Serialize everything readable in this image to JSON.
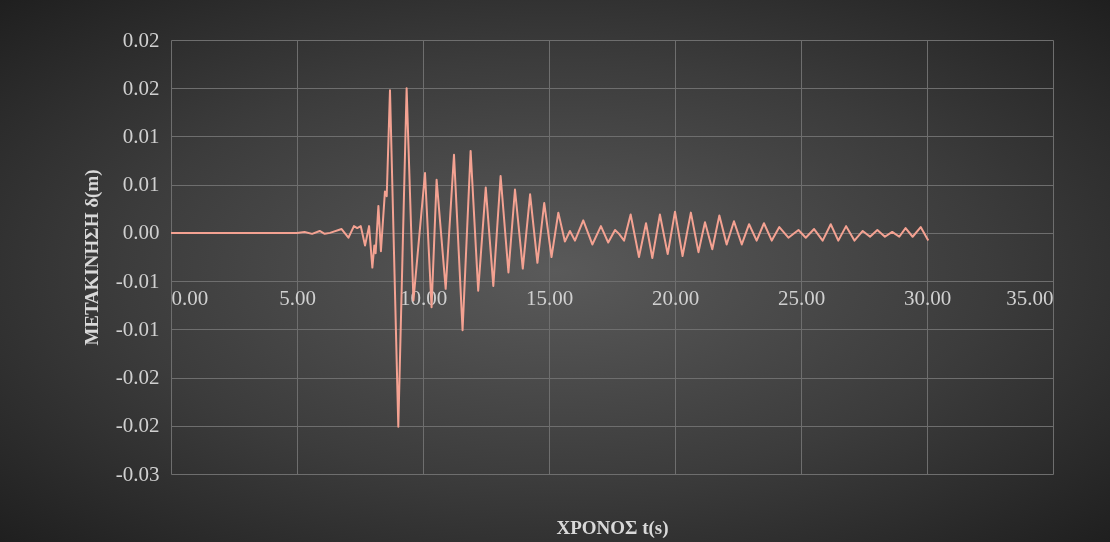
{
  "chart_data": {
    "type": "line",
    "xlabel": "ΧΡΟΝΟΣ t(s)",
    "ylabel": "ΜΕΤΑΚΙΝΗΣΗ δ(m)",
    "xlim": [
      0,
      35
    ],
    "xticks": [
      {
        "value": 0,
        "label": "0.00"
      },
      {
        "value": 5,
        "label": "5.00"
      },
      {
        "value": 10,
        "label": "10.00"
      },
      {
        "value": 15,
        "label": "15.00"
      },
      {
        "value": 20,
        "label": "20.00"
      },
      {
        "value": 25,
        "label": "25.00"
      },
      {
        "value": 30,
        "label": "30.00"
      },
      {
        "value": 35,
        "label": "35.00"
      }
    ],
    "ylim": [
      -0.025,
      0.02
    ],
    "yticks": [
      {
        "value": 0.02,
        "label": "0.02"
      },
      {
        "value": 0.015,
        "label": "0.02"
      },
      {
        "value": 0.01,
        "label": "0.01"
      },
      {
        "value": 0.005,
        "label": "0.01"
      },
      {
        "value": 0,
        "label": "0.00"
      },
      {
        "value": -0.005,
        "label": "-0.01"
      },
      {
        "value": -0.01,
        "label": "-0.01"
      },
      {
        "value": -0.015,
        "label": "-0.02"
      },
      {
        "value": -0.02,
        "label": "-0.02"
      },
      {
        "value": -0.025,
        "label": "-0.03"
      }
    ],
    "grid": true,
    "series": [
      {
        "color": "#f4a292",
        "x": [
          0,
          5,
          5.3,
          5.6,
          5.9,
          6.1,
          6.31,
          6.77,
          7.04,
          7.26,
          7.39,
          7.53,
          7.7,
          7.86,
          7.99,
          8.07,
          8.12,
          8.23,
          8.33,
          8.49,
          8.56,
          8.69,
          9.02,
          9.35,
          9.62,
          10.08,
          10.34,
          10.54,
          10.9,
          11.23,
          11.57,
          11.89,
          12.19,
          12.49,
          12.79,
          13.08,
          13.39,
          13.65,
          13.96,
          14.25,
          14.54,
          14.81,
          15.1,
          15.37,
          15.63,
          15.83,
          16.03,
          16.36,
          16.72,
          17.06,
          17.35,
          17.62,
          17.78,
          17.98,
          18.24,
          18.57,
          18.85,
          19.1,
          19.4,
          19.71,
          20,
          20.3,
          20.63,
          20.93,
          21.19,
          21.48,
          21.76,
          22.05,
          22.34,
          22.65,
          22.94,
          23.24,
          23.53,
          23.84,
          24.14,
          24.5,
          24.9,
          25.19,
          25.52,
          25.86,
          26.18,
          26.48,
          26.79,
          27.12,
          27.45,
          27.74,
          28.03,
          28.33,
          28.62,
          28.9,
          29.15,
          29.43,
          29.75,
          30.05
        ],
        "values": [
          0,
          0,
          0.0001,
          -0.0001,
          0.0002,
          -0.0001,
          0,
          0.0004,
          -0.0005,
          0.0007,
          0.0005,
          0.0007,
          -0.0013,
          0.0007,
          -0.0036,
          -0.0013,
          -0.0021,
          0.0028,
          -0.0019,
          0.0043,
          0.0038,
          0.0148,
          -0.0201,
          0.015,
          -0.007,
          0.0062,
          -0.0077,
          0.0055,
          -0.0058,
          0.0081,
          -0.0101,
          0.0085,
          -0.006,
          0.0047,
          -0.0055,
          0.0059,
          -0.0041,
          0.0045,
          -0.0037,
          0.004,
          -0.0031,
          0.0031,
          -0.0025,
          0.0021,
          -0.0009,
          0.0002,
          -0.0008,
          0.0013,
          -0.0012,
          0.0007,
          -0.001,
          0.0003,
          -0.0001,
          -0.0008,
          0.0019,
          -0.0025,
          0.001,
          -0.0026,
          0.0019,
          -0.0022,
          0.0022,
          -0.0024,
          0.0021,
          -0.002,
          0.0011,
          -0.0017,
          0.0018,
          -0.0012,
          0.0012,
          -0.0012,
          0.0009,
          -0.0008,
          0.001,
          -0.0008,
          0.0006,
          -0.0005,
          0.0003,
          -0.0005,
          0.0004,
          -0.0008,
          0.0009,
          -0.0008,
          0.0007,
          -0.0008,
          0.0002,
          -0.0004,
          0.0003,
          -0.0004,
          0.0001,
          -0.0004,
          0.0005,
          -0.0004,
          0.0006,
          -0.0008
        ]
      }
    ]
  }
}
